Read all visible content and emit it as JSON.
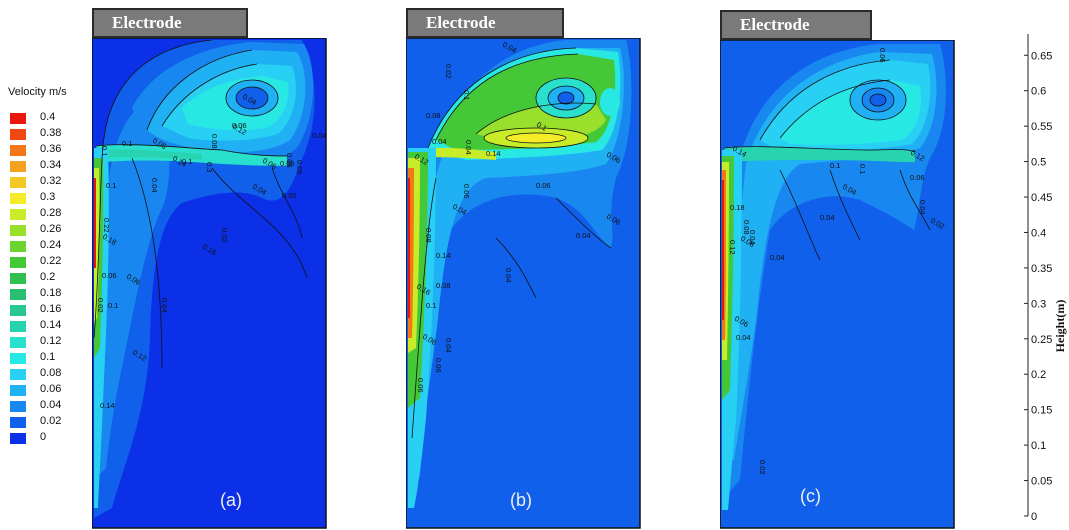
{
  "legend": {
    "title": "Velocity m/s",
    "levels": [
      "0.4",
      "0.38",
      "0.36",
      "0.34",
      "0.32",
      "0.3",
      "0.28",
      "0.26",
      "0.24",
      "0.22",
      "0.2",
      "0.18",
      "0.16",
      "0.14",
      "0.12",
      "0.1",
      "0.08",
      "0.06",
      "0.04",
      "0.02",
      "0"
    ],
    "colors": [
      "#e8180c",
      "#f04810",
      "#f47818",
      "#f4a020",
      "#f4c824",
      "#f4ec28",
      "#c8ec28",
      "#98e02c",
      "#6cd430",
      "#44c838",
      "#30c050",
      "#28c070",
      "#28c894",
      "#28d4b0",
      "#28e0cc",
      "#28e8e4",
      "#28d0f4",
      "#20b0f4",
      "#1888f0",
      "#1060ec",
      "#0c30e8"
    ]
  },
  "panels": [
    {
      "id": "a",
      "label": "(a)",
      "header": "Electrode"
    },
    {
      "id": "b",
      "label": "(b)",
      "header": "Electrode"
    },
    {
      "id": "c",
      "label": "(c)",
      "header": "Electrode"
    }
  ],
  "contour_labels": {
    "a": [
      "0.1",
      "0.04",
      "0.06",
      "0.08",
      "0.12",
      "0.04",
      "0.06",
      "0.05",
      "0.1",
      "0.05",
      "0.14",
      "0.1",
      "0.3",
      "0.06",
      "0.06",
      "0.04",
      "0.04",
      "0.02",
      "0.02",
      "0.16",
      "0.1",
      "0.22",
      "0.18",
      "0.06",
      "0.02",
      "0.06",
      "0.1",
      "0.04",
      "0.12",
      "0.14"
    ],
    "b": [
      "0.02",
      "0.04",
      "0.08",
      "0.1",
      "0.1",
      "0.04",
      "0.04",
      "0.12",
      "0.14",
      "0.06",
      "0.06",
      "0.14",
      "0.08",
      "0.06",
      "0.08",
      "0.04",
      "0.06",
      "0.04",
      "0.04",
      "0.16",
      "0.1",
      "0.06",
      "0.04",
      "0.06",
      "0.06"
    ],
    "c": [
      "0.06",
      "0.12",
      "0.1",
      "0.1",
      "0.04",
      "0.06",
      "0.04",
      "0.02",
      "0.04",
      "0.04",
      "0.14",
      "0.18",
      "0.12",
      "0.08",
      "0.04",
      "0.08",
      "0.06",
      "0.04",
      "0.02"
    ]
  },
  "height_axis": {
    "label": "Height(m)",
    "ticks": [
      "0.65",
      "0.6",
      "0.55",
      "0.5",
      "0.45",
      "0.4",
      "0.35",
      "0.3",
      "0.25",
      "0.2",
      "0.15",
      "0.1",
      "0.05",
      "0"
    ]
  },
  "chart_data": {
    "type": "heatmap",
    "title": "",
    "colorbar_label": "Velocity m/s",
    "colorbar_range": [
      0,
      0.4
    ],
    "colorbar_levels": [
      0.4,
      0.38,
      0.36,
      0.34,
      0.32,
      0.3,
      0.28,
      0.26,
      0.24,
      0.22,
      0.2,
      0.18,
      0.16,
      0.14,
      0.12,
      0.1,
      0.08,
      0.06,
      0.04,
      0.02,
      0
    ],
    "ylabel": "Height(m)",
    "ylim": [
      0,
      0.68
    ],
    "yticks": [
      0,
      0.05,
      0.1,
      0.15,
      0.2,
      0.25,
      0.3,
      0.35,
      0.4,
      0.45,
      0.5,
      0.55,
      0.6,
      0.65
    ],
    "panels": [
      "(a)",
      "(b)",
      "(c)"
    ],
    "grid": false,
    "legend_placement": "left"
  }
}
